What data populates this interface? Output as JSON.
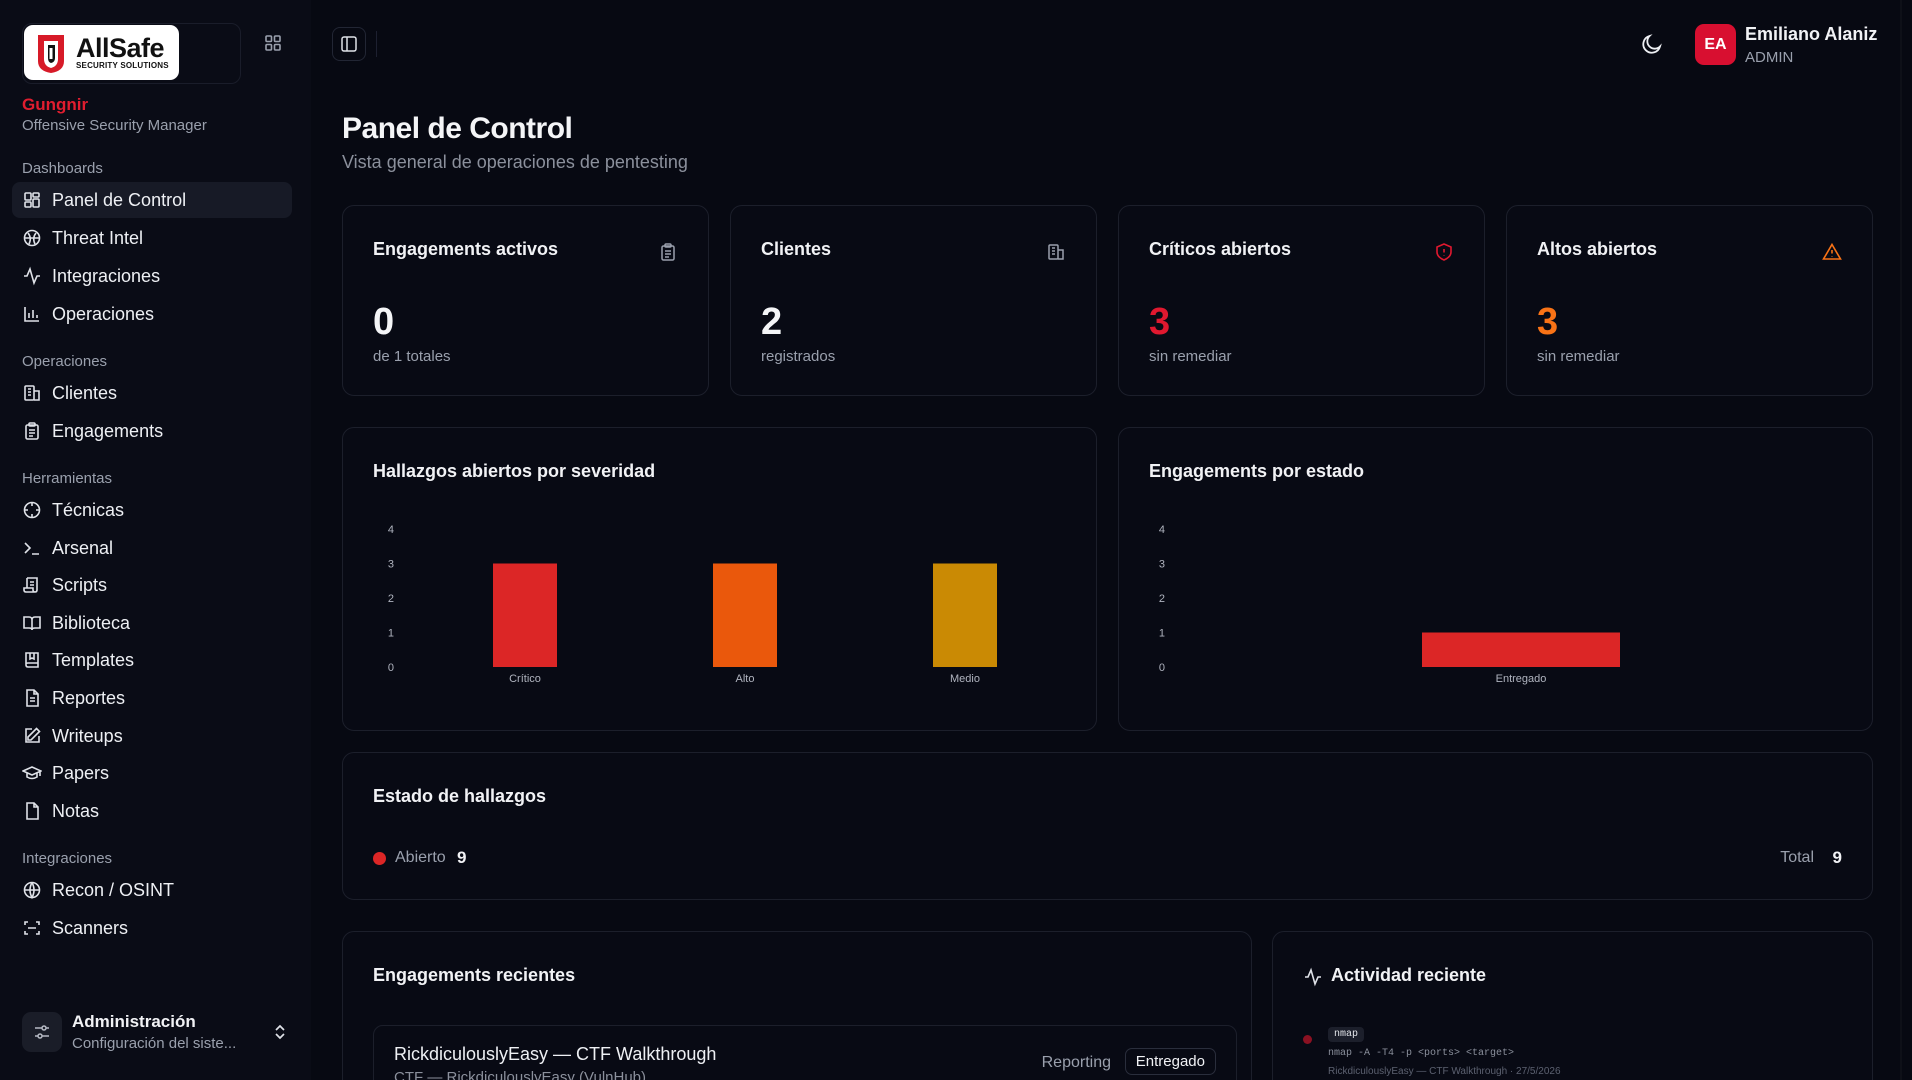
{
  "brand": {
    "logo_big": "AllSafe",
    "logo_small": "SECURITY SOLUTIONS",
    "name": "Gungnir",
    "subtitle": "Offensive Security Manager"
  },
  "sidebar": {
    "groups": [
      {
        "label": "Dashboards",
        "items": [
          {
            "label": "Panel de Control",
            "icon": "layout-dashboard-icon",
            "active": true
          },
          {
            "label": "Threat Intel",
            "icon": "bug-icon"
          },
          {
            "label": "Integraciones",
            "icon": "activity-icon"
          },
          {
            "label": "Operaciones",
            "icon": "bar-chart-icon"
          }
        ]
      },
      {
        "label": "Operaciones",
        "items": [
          {
            "label": "Clientes",
            "icon": "building-icon"
          },
          {
            "label": "Engagements",
            "icon": "clipboard-icon"
          }
        ]
      },
      {
        "label": "Herramientas",
        "items": [
          {
            "label": "Técnicas",
            "icon": "crosshair-icon"
          },
          {
            "label": "Arsenal",
            "icon": "terminal-icon"
          },
          {
            "label": "Scripts",
            "icon": "scroll-icon"
          },
          {
            "label": "Biblioteca",
            "icon": "book-open-icon"
          },
          {
            "label": "Templates",
            "icon": "book-icon"
          },
          {
            "label": "Reportes",
            "icon": "file-text-icon"
          },
          {
            "label": "Writeups",
            "icon": "pen-square-icon"
          },
          {
            "label": "Papers",
            "icon": "graduation-cap-icon"
          },
          {
            "label": "Notas",
            "icon": "file-icon"
          }
        ]
      },
      {
        "label": "Integraciones",
        "items": [
          {
            "label": "Recon / OSINT",
            "icon": "globe-icon"
          },
          {
            "label": "Scanners",
            "icon": "scan-icon"
          }
        ]
      }
    ],
    "admin": {
      "title": "Administración",
      "subtitle": "Configuración del siste..."
    }
  },
  "header": {
    "user": {
      "initials": "EA",
      "name": "Emiliano Alaniz",
      "role": "ADMIN"
    }
  },
  "page": {
    "title": "Panel de Control",
    "subtitle": "Vista general de operaciones de pentesting"
  },
  "stats": [
    {
      "title": "Engagements activos",
      "value": "0",
      "sub": "de 1 totales",
      "icon": "clipboard-list-icon",
      "color": "#f4f5f7"
    },
    {
      "title": "Clientes",
      "value": "2",
      "sub": "registrados",
      "icon": "building-icon",
      "color": "#f4f5f7"
    },
    {
      "title": "Críticos abiertos",
      "value": "3",
      "sub": "sin remediar",
      "icon": "shield-alert-icon",
      "color": "#e0182f"
    },
    {
      "title": "Altos abiertos",
      "value": "3",
      "sub": "sin remediar",
      "icon": "alert-triangle-icon",
      "color": "#f97316"
    }
  ],
  "chart_data": [
    {
      "type": "bar",
      "title": "Hallazgos abiertos por severidad",
      "categories": [
        "Crítico",
        "Alto",
        "Medio"
      ],
      "values": [
        3,
        3,
        3
      ],
      "colors": [
        "#dc2626",
        "#ea580c",
        "#ca8a04"
      ],
      "yticks": [
        0,
        1,
        2,
        3,
        4
      ],
      "ylim": [
        0,
        4
      ],
      "grid": false
    },
    {
      "type": "bar",
      "title": "Engagements por estado",
      "categories": [
        "Entregado"
      ],
      "values": [
        1
      ],
      "colors": [
        "#dc2626"
      ],
      "yticks": [
        0,
        1,
        2,
        3,
        4
      ],
      "ylim": [
        0,
        4
      ],
      "grid": false
    }
  ],
  "findings_status": {
    "title": "Estado de hallazgos",
    "legend": [
      {
        "label": "Abierto",
        "value": "9",
        "color": "#dc2626"
      }
    ],
    "total_label": "Total",
    "total_value": "9"
  },
  "recent_engagements": {
    "title": "Engagements recientes",
    "items": [
      {
        "title": "RickdiculouslyEasy — CTF Walkthrough",
        "sub": "CTF — RickdiculouslyEasy (VulnHub)",
        "phase": "Reporting",
        "status": "Entregado"
      }
    ]
  },
  "activity": {
    "title": "Actividad reciente",
    "items": [
      {
        "tag": "nmap",
        "command": "nmap -A -T4 -p <ports> <target>",
        "meta": "RickdiculouslyEasy — CTF Walkthrough · 27/5/2026"
      }
    ]
  }
}
